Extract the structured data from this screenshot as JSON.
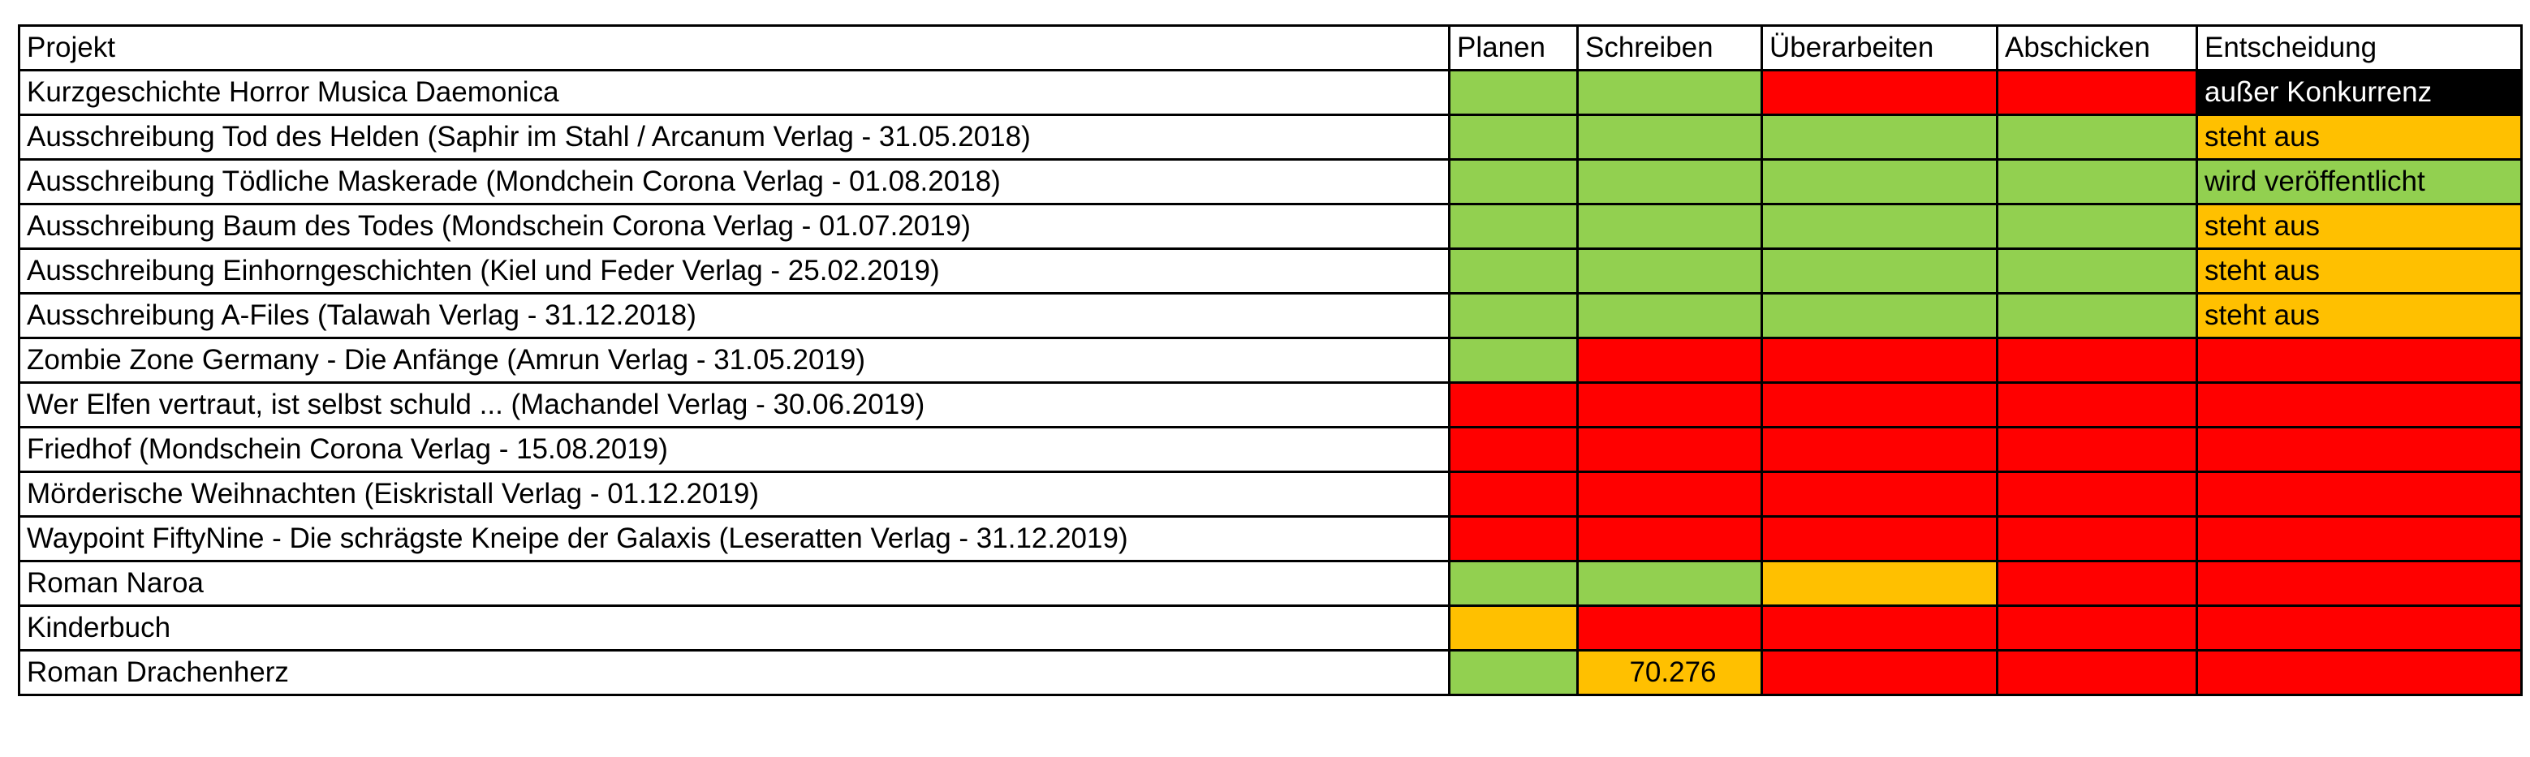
{
  "colors": {
    "green": "#92d050",
    "red": "#ff0000",
    "orange": "#ffc000",
    "black": "#000000",
    "white": "#ffffff"
  },
  "headers": [
    "Projekt",
    "Planen",
    "Schreiben",
    "Überarbeiten",
    "Abschicken",
    "Entscheidung"
  ],
  "rows": [
    {
      "project": "Kurzgeschichte Horror Musica Daemonica",
      "cells": [
        {
          "status": "green"
        },
        {
          "status": "green"
        },
        {
          "status": "red"
        },
        {
          "status": "red"
        },
        {
          "status": "black",
          "text": "außer Konkurrenz"
        }
      ]
    },
    {
      "project": "Ausschreibung Tod des Helden (Saphir im Stahl / Arcanum Verlag - 31.05.2018)",
      "cells": [
        {
          "status": "green"
        },
        {
          "status": "green"
        },
        {
          "status": "green"
        },
        {
          "status": "green"
        },
        {
          "status": "orange",
          "text": "steht aus"
        }
      ]
    },
    {
      "project": "Ausschreibung Tödliche Maskerade (Mondchein Corona Verlag - 01.08.2018)",
      "cells": [
        {
          "status": "green"
        },
        {
          "status": "green"
        },
        {
          "status": "green"
        },
        {
          "status": "green"
        },
        {
          "status": "green",
          "text": "wird veröffentlicht"
        }
      ]
    },
    {
      "project": "Ausschreibung Baum des Todes (Mondschein Corona Verlag - 01.07.2019)",
      "cells": [
        {
          "status": "green"
        },
        {
          "status": "green"
        },
        {
          "status": "green"
        },
        {
          "status": "green"
        },
        {
          "status": "orange",
          "text": "steht aus"
        }
      ]
    },
    {
      "project": "Ausschreibung Einhorngeschichten (Kiel und Feder Verlag - 25.02.2019)",
      "cells": [
        {
          "status": "green"
        },
        {
          "status": "green"
        },
        {
          "status": "green"
        },
        {
          "status": "green"
        },
        {
          "status": "orange",
          "text": "steht aus"
        }
      ]
    },
    {
      "project": "Ausschreibung A-Files (Talawah Verlag - 31.12.2018)",
      "cells": [
        {
          "status": "green"
        },
        {
          "status": "green"
        },
        {
          "status": "green"
        },
        {
          "status": "green"
        },
        {
          "status": "orange",
          "text": "steht aus"
        }
      ]
    },
    {
      "project": "Zombie Zone Germany - Die Anfänge (Amrun Verlag - 31.05.2019)",
      "cells": [
        {
          "status": "green"
        },
        {
          "status": "red"
        },
        {
          "status": "red"
        },
        {
          "status": "red"
        },
        {
          "status": "red"
        }
      ]
    },
    {
      "project": "Wer Elfen vertraut, ist selbst schuld ... (Machandel Verlag - 30.06.2019)",
      "cells": [
        {
          "status": "red"
        },
        {
          "status": "red"
        },
        {
          "status": "red"
        },
        {
          "status": "red"
        },
        {
          "status": "red"
        }
      ]
    },
    {
      "project": "Friedhof (Mondschein Corona Verlag - 15.08.2019)",
      "cells": [
        {
          "status": "red"
        },
        {
          "status": "red"
        },
        {
          "status": "red"
        },
        {
          "status": "red"
        },
        {
          "status": "red"
        }
      ]
    },
    {
      "project": "Mörderische Weihnachten (Eiskristall Verlag - 01.12.2019)",
      "cells": [
        {
          "status": "red"
        },
        {
          "status": "red"
        },
        {
          "status": "red"
        },
        {
          "status": "red"
        },
        {
          "status": "red"
        }
      ]
    },
    {
      "project": "Waypoint FiftyNine - Die schrägste Kneipe der Galaxis (Leseratten Verlag - 31.12.2019)",
      "cells": [
        {
          "status": "red"
        },
        {
          "status": "red"
        },
        {
          "status": "red"
        },
        {
          "status": "red"
        },
        {
          "status": "red"
        }
      ]
    },
    {
      "project": "Roman Naroa",
      "cells": [
        {
          "status": "green"
        },
        {
          "status": "green"
        },
        {
          "status": "orange"
        },
        {
          "status": "red"
        },
        {
          "status": "red"
        }
      ]
    },
    {
      "project": "Kinderbuch",
      "cells": [
        {
          "status": "orange"
        },
        {
          "status": "red"
        },
        {
          "status": "red"
        },
        {
          "status": "red"
        },
        {
          "status": "red"
        }
      ]
    },
    {
      "project": "Roman Drachenherz",
      "cells": [
        {
          "status": "green"
        },
        {
          "status": "orange",
          "text": "70.276",
          "align": "center"
        },
        {
          "status": "red"
        },
        {
          "status": "red"
        },
        {
          "status": "red"
        }
      ]
    }
  ]
}
